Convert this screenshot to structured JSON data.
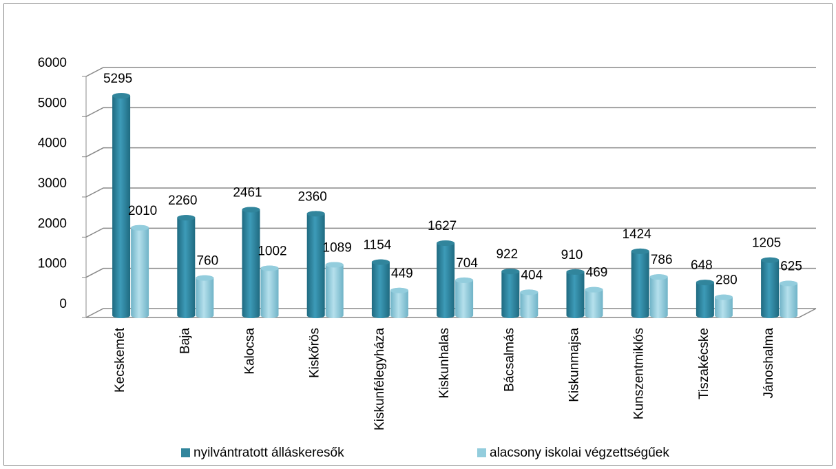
{
  "chart_data": {
    "type": "bar",
    "categories": [
      "Kecskemét",
      "Baja",
      "Kalocsa",
      "Kiskőrös",
      "Kiskunfélegyháza",
      "Kiskunhalas",
      "Bácsalmás",
      "Kiskunmajsa",
      "Kunszentmiklós",
      "Tiszakécske",
      "Jánoshalma"
    ],
    "series": [
      {
        "name": "nyilvántratott álláskeresők",
        "color": "#31859c",
        "values": [
          5295,
          2260,
          2461,
          2360,
          1154,
          1627,
          922,
          910,
          1424,
          648,
          1205
        ]
      },
      {
        "name": "alacsony iskolai végzettségűek",
        "color": "#93cddd",
        "values": [
          2010,
          760,
          1002,
          1089,
          449,
          704,
          404,
          469,
          786,
          280,
          625
        ]
      }
    ],
    "ylim": [
      0,
      6000
    ],
    "yticks": [
      0,
      1000,
      2000,
      3000,
      4000,
      5000,
      6000
    ],
    "grid": true,
    "legend": "bottom"
  }
}
